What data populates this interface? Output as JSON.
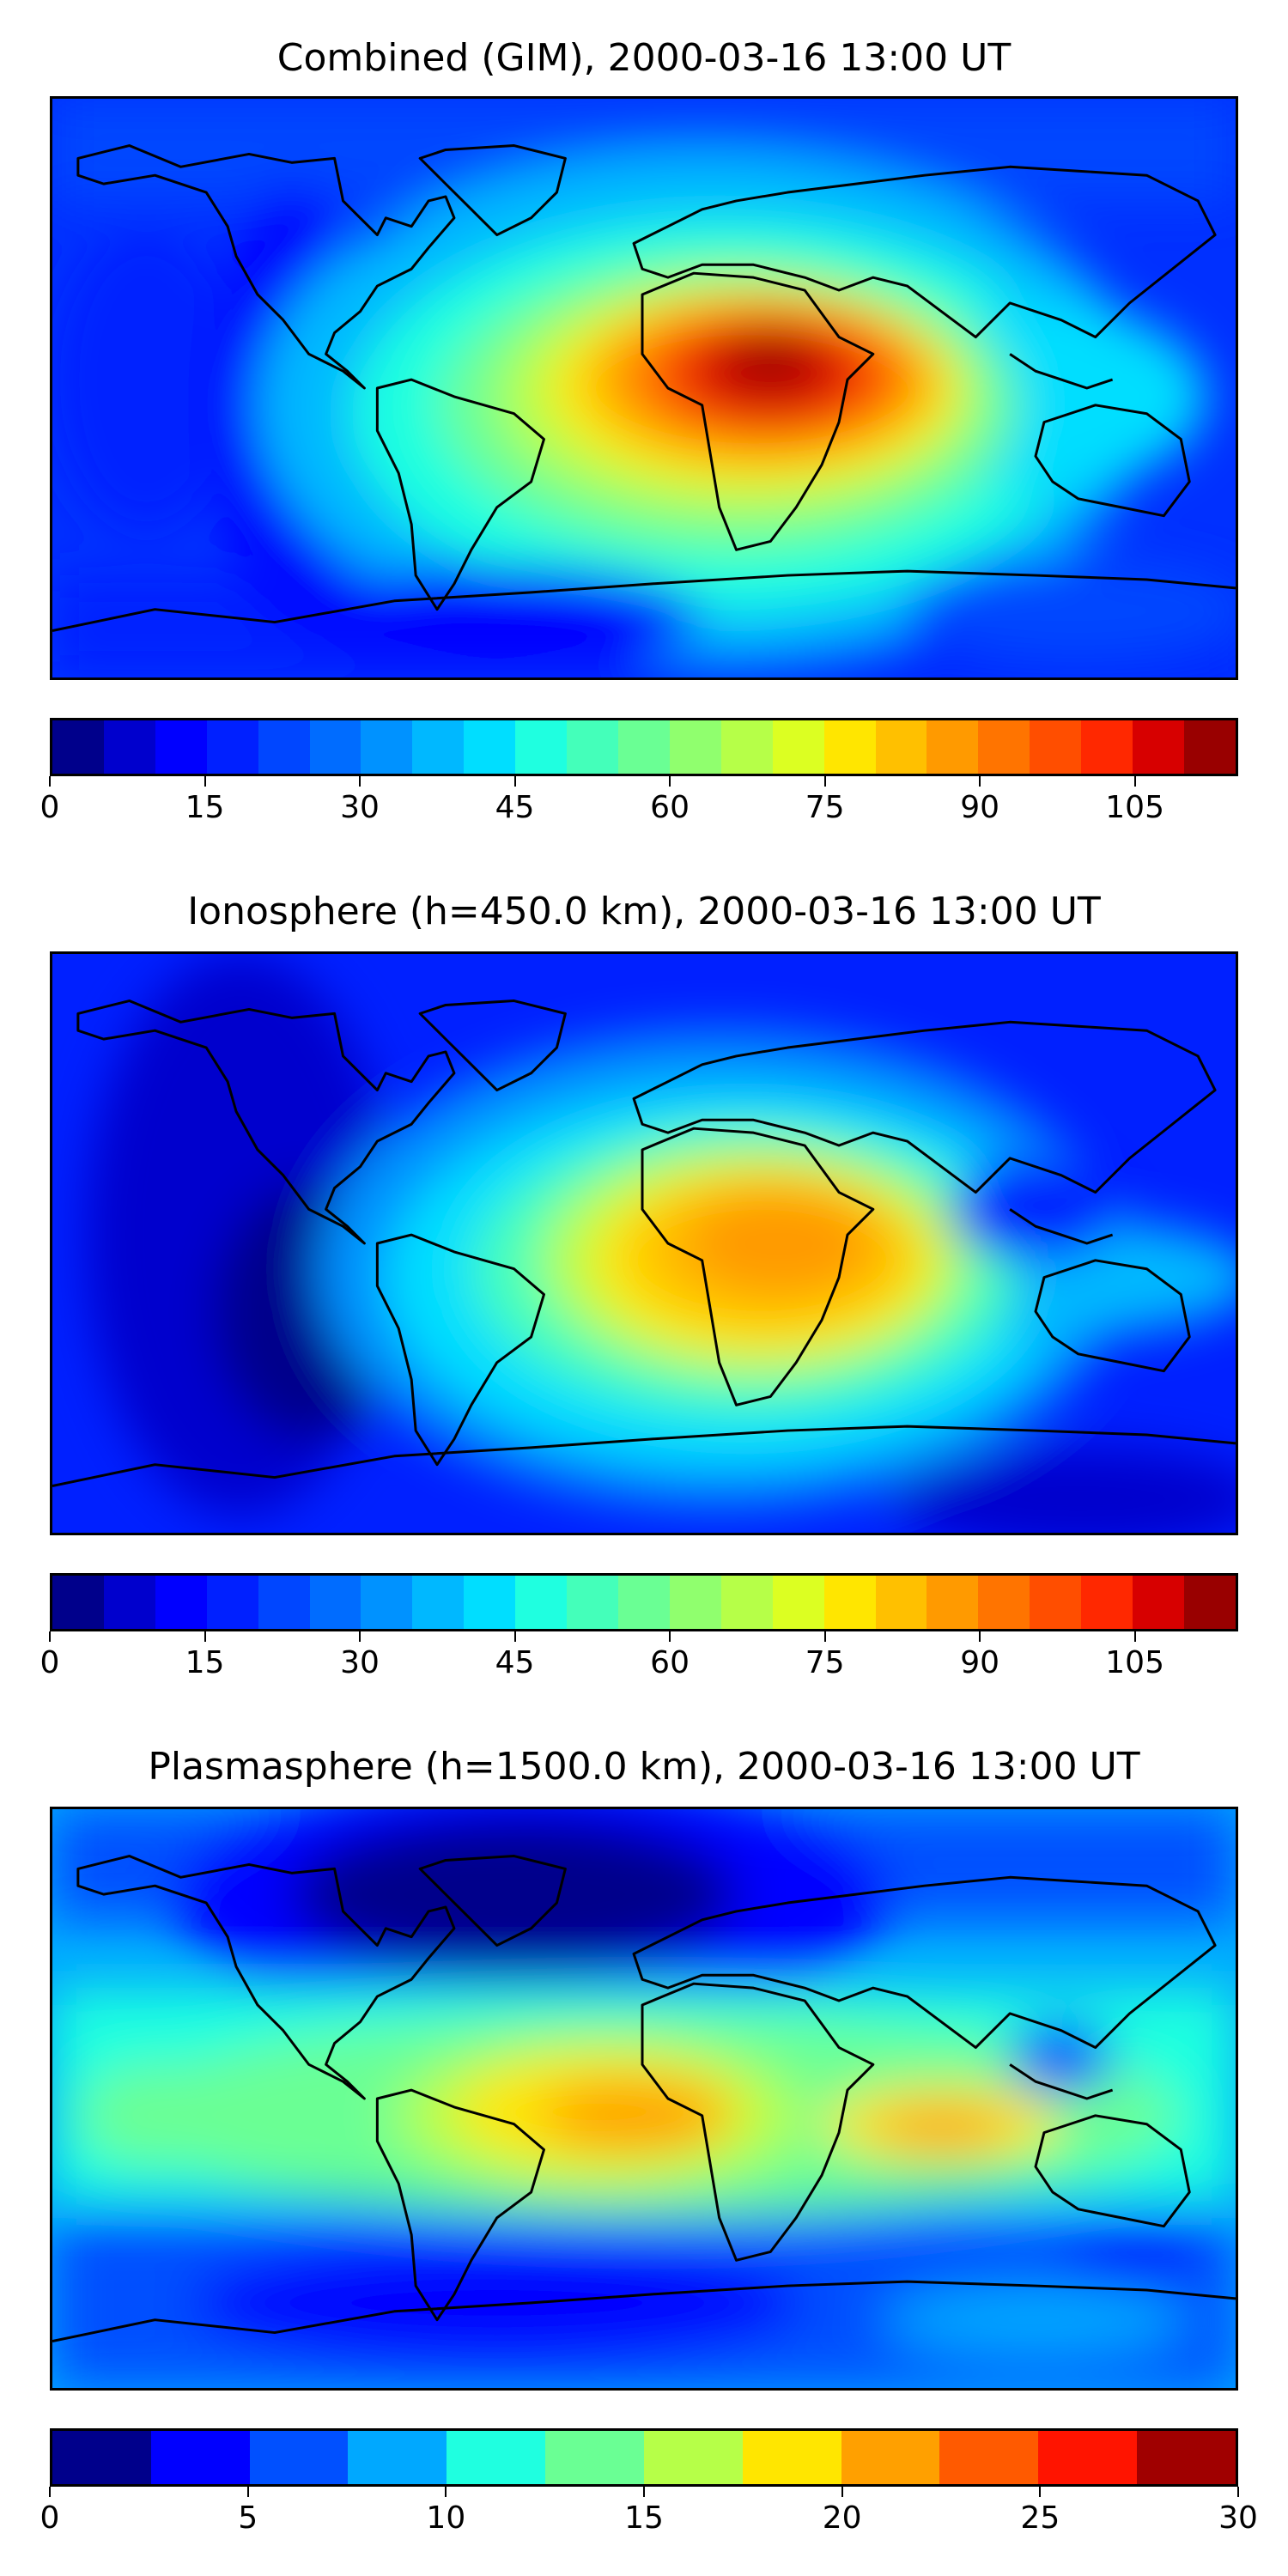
{
  "panels": [
    {
      "title": "Combined (GIM), 2000-03-16 13:00 UT",
      "colorbar": {
        "min": 0,
        "max": 115,
        "tick_labels": [
          "0",
          "15",
          "30",
          "45",
          "60",
          "75",
          "90",
          "105"
        ],
        "tick_values": [
          0,
          15,
          30,
          45,
          60,
          75,
          90,
          105
        ]
      }
    },
    {
      "title": "Ionosphere  (h=450.0 km), 2000-03-16 13:00 UT",
      "colorbar": {
        "min": 0,
        "max": 115,
        "tick_labels": [
          "0",
          "15",
          "30",
          "45",
          "60",
          "75",
          "90",
          "105"
        ],
        "tick_values": [
          0,
          15,
          30,
          45,
          60,
          75,
          90,
          105
        ]
      }
    },
    {
      "title": "Plasmasphere (h=1500.0 km), 2000-03-16 13:00 UT",
      "colorbar": {
        "min": 0,
        "max": 30,
        "tick_labels": [
          "0",
          "5",
          "10",
          "15",
          "20",
          "25",
          "30"
        ],
        "tick_values": [
          0,
          5,
          10,
          15,
          20,
          25,
          30
        ]
      }
    }
  ],
  "colors": {
    "jet23": [
      "#00008b",
      "#0000cd",
      "#0000ff",
      "#0020ff",
      "#0046ff",
      "#006cff",
      "#0092ff",
      "#00b8ff",
      "#00deff",
      "#1fffe0",
      "#44ffba",
      "#6aff94",
      "#90ff6e",
      "#b6ff48",
      "#dcff22",
      "#ffe600",
      "#ffc000",
      "#ff9a00",
      "#ff7400",
      "#ff4e00",
      "#ff2800",
      "#d70000",
      "#990000"
    ],
    "jet12": [
      "#00008b",
      "#0000ff",
      "#0050ff",
      "#00a8ff",
      "#1fffe0",
      "#6aff94",
      "#b6ff48",
      "#ffe600",
      "#ffa000",
      "#ff5a00",
      "#ff1400",
      "#a00000"
    ]
  }
}
